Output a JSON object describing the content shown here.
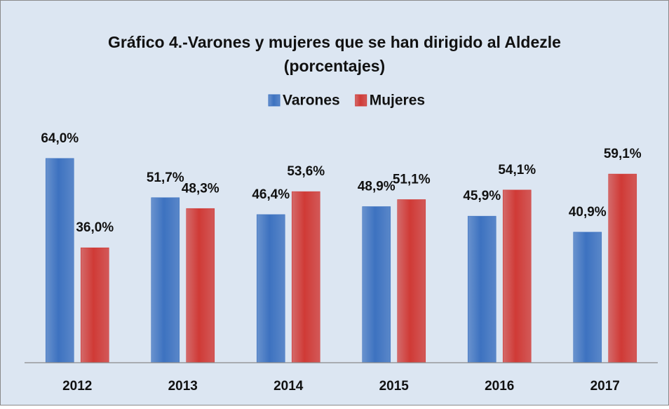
{
  "chart_data": {
    "type": "bar",
    "title": "Gráfico 4.-Varones y mujeres que se han dirigido al Aldezle",
    "subtitle": "(porcentajes)",
    "categories": [
      "2012",
      "2013",
      "2014",
      "2015",
      "2016",
      "2017"
    ],
    "series": [
      {
        "name": "Varones",
        "color": "#3d72c0",
        "values": [
          64.0,
          51.7,
          46.4,
          48.9,
          45.9,
          40.9
        ],
        "value_labels": [
          "64,0%",
          "51,7%",
          "46,4%",
          "48,9%",
          "45,9%",
          "40,9%"
        ]
      },
      {
        "name": "Mujeres",
        "color": "#d03a36",
        "values": [
          36.0,
          48.3,
          53.6,
          51.1,
          54.1,
          59.1
        ],
        "value_labels": [
          "36,0%",
          "48,3%",
          "53,6%",
          "51,1%",
          "54,1%",
          "59,1%"
        ]
      }
    ],
    "ylim": [
      0,
      70
    ],
    "legend": "top"
  }
}
